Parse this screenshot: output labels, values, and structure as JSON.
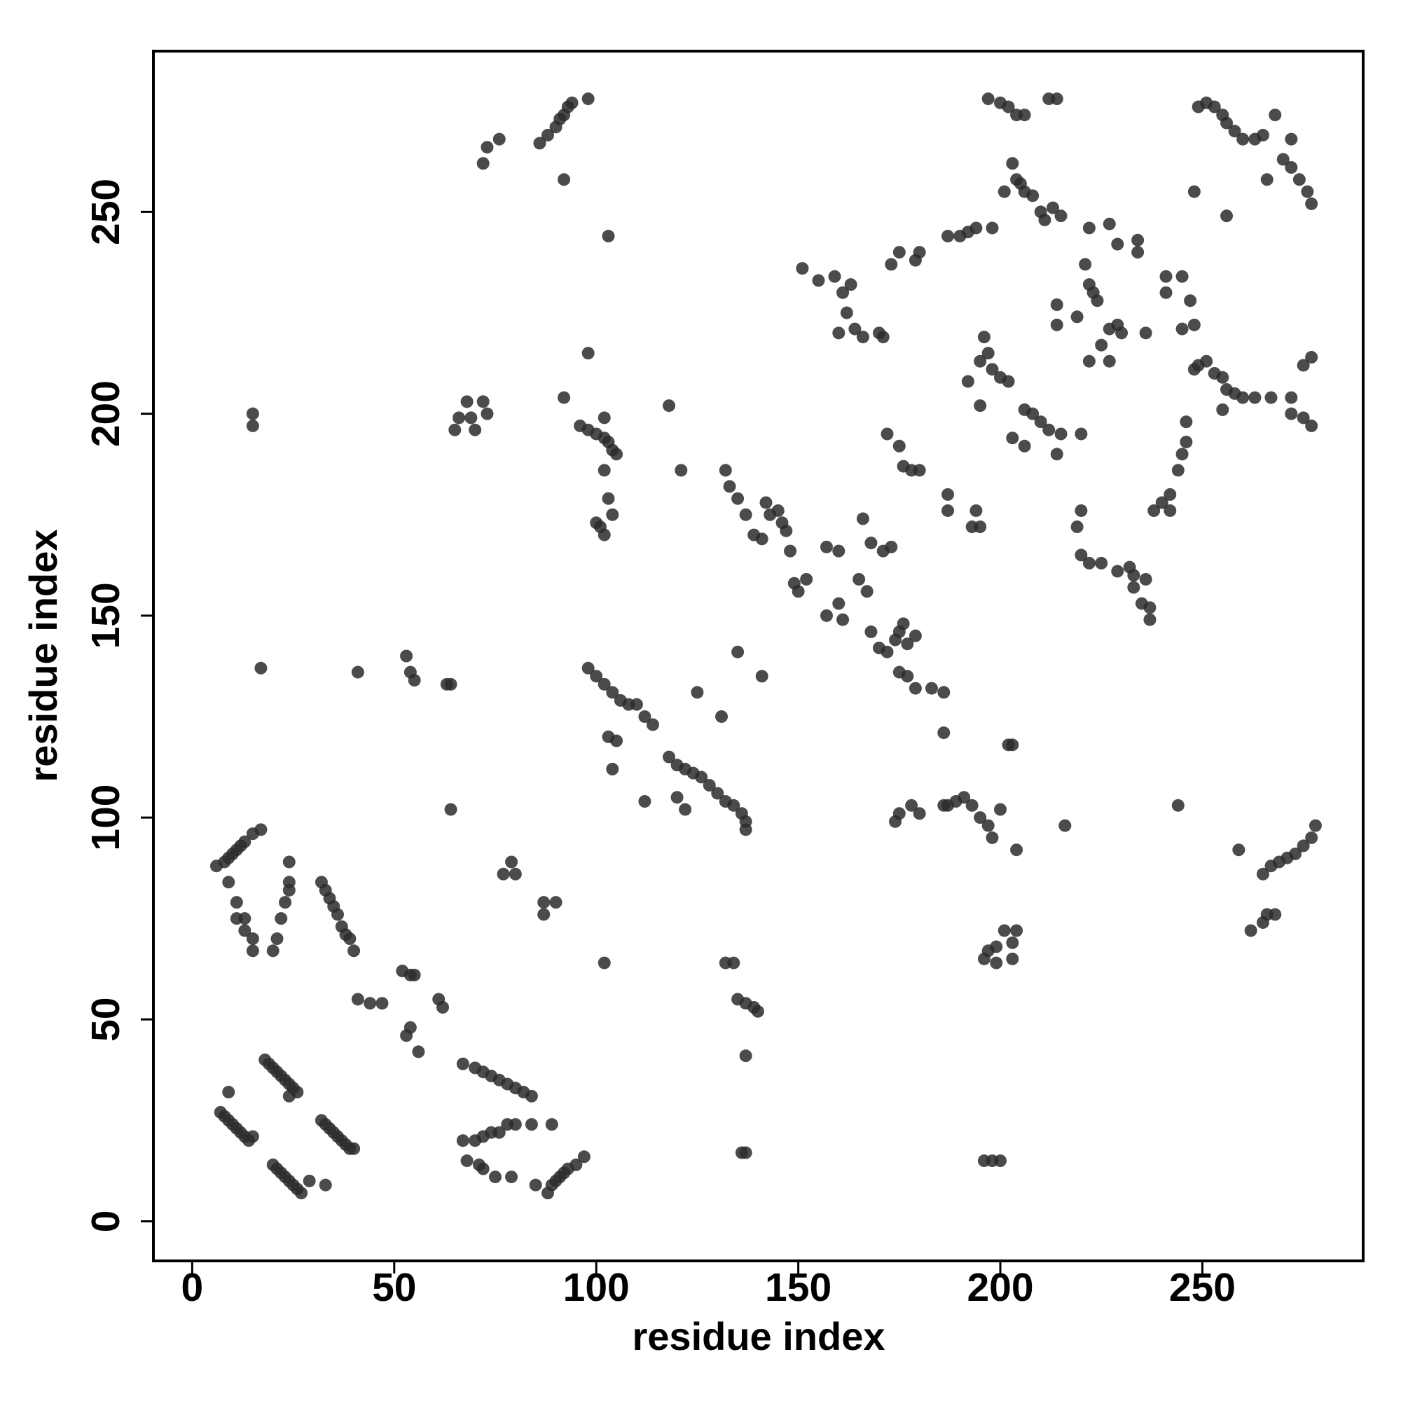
{
  "chart_data": {
    "type": "scatter",
    "xlabel": "residue index",
    "ylabel": "residue index",
    "color": "#2b2b2b",
    "xlim": [
      -9.6,
      289.8
    ],
    "ylim": [
      -9.8,
      289.8
    ],
    "xticks": [
      0,
      50,
      100,
      150,
      200,
      250
    ],
    "yticks": [
      0,
      50,
      100,
      150,
      200,
      250
    ],
    "x": [
      7,
      8,
      9,
      10,
      11,
      12,
      13,
      14,
      15,
      9,
      18,
      19,
      20,
      21,
      22,
      23,
      24,
      25,
      26,
      24,
      20,
      21,
      22,
      23,
      24,
      25,
      26,
      27,
      29,
      33,
      32,
      33,
      34,
      35,
      36,
      37,
      38,
      39,
      40,
      67,
      70,
      72,
      74,
      76,
      78,
      80,
      82,
      84,
      67,
      70,
      72,
      74,
      76,
      78,
      80,
      84,
      89,
      68,
      71,
      72,
      75,
      79,
      85,
      88,
      89,
      90,
      91,
      92,
      93,
      95,
      97,
      6,
      8,
      9,
      10,
      11,
      12,
      13,
      15,
      17,
      9,
      11,
      11,
      13,
      13,
      15,
      15,
      20,
      21,
      22,
      23,
      24,
      24,
      24,
      32,
      33,
      34,
      35,
      36,
      37,
      38,
      39,
      40,
      15,
      15,
      17,
      41,
      53,
      54,
      55,
      63,
      64,
      64,
      41,
      44,
      47,
      52,
      54,
      55,
      53,
      54,
      56,
      61,
      62,
      77,
      79,
      80,
      87,
      87,
      90,
      102,
      72,
      73,
      76,
      86,
      88,
      90,
      91,
      92,
      93,
      94,
      98,
      92,
      103,
      65,
      66,
      68,
      69,
      70,
      72,
      73,
      92,
      98,
      96,
      98,
      100,
      102,
      103,
      104,
      105,
      102,
      102,
      103,
      104,
      100,
      101,
      102,
      118,
      121,
      98,
      100,
      102,
      104,
      106,
      108,
      110,
      112,
      114,
      118,
      120,
      122,
      124,
      126,
      128,
      130,
      132,
      134,
      136,
      137,
      137,
      103,
      105,
      104,
      112,
      120,
      122,
      125,
      131,
      135,
      141,
      132,
      134,
      135,
      137,
      139,
      140,
      137,
      136,
      137,
      132,
      133,
      135,
      137,
      139,
      141,
      142,
      143,
      145,
      146,
      147,
      148,
      149,
      150,
      152,
      157,
      160,
      157,
      160,
      161,
      165,
      167,
      168,
      170,
      172,
      174,
      175,
      176,
      177,
      179,
      175,
      177,
      179,
      183,
      186,
      186,
      166,
      168,
      171,
      173,
      151,
      155,
      159,
      161,
      163,
      162,
      164,
      166,
      160,
      170,
      171,
      173,
      175,
      179,
      180,
      187,
      190,
      192,
      194,
      198,
      172,
      175,
      176,
      178,
      180,
      187,
      187,
      194,
      195,
      193,
      197,
      200,
      202,
      204,
      206,
      212,
      214,
      201,
      203,
      204,
      205,
      206,
      208,
      210,
      211,
      213,
      215,
      222,
      227,
      229,
      234,
      234,
      214,
      214,
      219,
      221,
      222,
      223,
      224,
      222,
      225,
      227,
      229,
      230,
      236,
      227,
      196,
      197,
      195,
      198,
      200,
      202,
      192,
      195,
      206,
      208,
      210,
      212,
      215,
      220,
      203,
      206,
      214,
      219,
      220,
      220,
      222,
      225,
      229,
      232,
      233,
      233,
      235,
      237,
      236,
      237,
      238,
      240,
      242,
      242,
      244,
      245,
      246,
      246,
      241,
      241,
      245,
      247,
      248,
      245,
      248,
      249,
      251,
      253,
      255,
      256,
      258,
      260,
      263,
      267,
      272,
      272,
      275,
      277,
      277,
      275,
      255,
      249,
      251,
      253,
      255,
      256,
      258,
      260,
      263,
      265,
      268,
      270,
      272,
      274,
      276,
      277,
      272,
      266,
      248,
      256,
      265,
      267,
      269,
      271,
      273,
      275,
      277,
      278,
      259,
      262,
      265,
      266,
      268,
      174,
      175,
      178,
      180,
      186,
      189,
      191,
      193,
      195,
      197,
      200,
      198,
      204,
      187,
      196,
      197,
      199,
      201,
      203,
      204,
      203,
      199,
      202,
      203,
      216,
      244,
      196,
      198,
      200
    ],
    "values": [
      27,
      26,
      25,
      24,
      23,
      22,
      21,
      20,
      21,
      32,
      40,
      39,
      38,
      37,
      36,
      35,
      34,
      33,
      32,
      31,
      14,
      13,
      12,
      11,
      10,
      9,
      8,
      7,
      10,
      9,
      25,
      24,
      23,
      22,
      21,
      20,
      19,
      18,
      18,
      39,
      38,
      37,
      36,
      35,
      34,
      33,
      32,
      31,
      20,
      20,
      21,
      22,
      22,
      24,
      24,
      24,
      24,
      15,
      14,
      13,
      11,
      11,
      9,
      7,
      9,
      10,
      11,
      12,
      13,
      14,
      16,
      88,
      89,
      90,
      91,
      92,
      93,
      94,
      96,
      97,
      84,
      79,
      75,
      75,
      72,
      70,
      67,
      67,
      70,
      75,
      79,
      82,
      84,
      89,
      84,
      82,
      80,
      78,
      76,
      73,
      71,
      70,
      67,
      200,
      197,
      137,
      136,
      140,
      136,
      134,
      133,
      133,
      102,
      55,
      54,
      54,
      62,
      61,
      61,
      46,
      48,
      42,
      55,
      53,
      86,
      89,
      86,
      79,
      76,
      79,
      64,
      262,
      266,
      268,
      267,
      269,
      271,
      273,
      274,
      276,
      277,
      278,
      258,
      244,
      196,
      199,
      203,
      199,
      196,
      203,
      200,
      204,
      215,
      197,
      196,
      195,
      194,
      193,
      191,
      190,
      199,
      186,
      179,
      175,
      173,
      172,
      170,
      202,
      186,
      137,
      135,
      133,
      131,
      129,
      128,
      128,
      125,
      123,
      115,
      113,
      112,
      111,
      110,
      108,
      106,
      104,
      103,
      101,
      99,
      97,
      120,
      119,
      112,
      104,
      105,
      102,
      131,
      125,
      141,
      135,
      64,
      64,
      55,
      54,
      53,
      52,
      41,
      17,
      17,
      186,
      182,
      179,
      175,
      170,
      169,
      178,
      175,
      176,
      173,
      171,
      166,
      158,
      156,
      159,
      167,
      166,
      150,
      153,
      149,
      159,
      156,
      146,
      142,
      141,
      144,
      146,
      148,
      143,
      145,
      136,
      135,
      132,
      132,
      131,
      121,
      174,
      168,
      166,
      167,
      236,
      233,
      234,
      230,
      232,
      225,
      221,
      219,
      220,
      220,
      219,
      237,
      240,
      238,
      240,
      244,
      244,
      245,
      246,
      246,
      195,
      192,
      187,
      186,
      186,
      180,
      176,
      176,
      172,
      172,
      278,
      277,
      276,
      274,
      274,
      278,
      278,
      255,
      262,
      258,
      257,
      255,
      254,
      250,
      248,
      251,
      249,
      246,
      247,
      242,
      243,
      240,
      227,
      222,
      224,
      237,
      232,
      230,
      228,
      213,
      217,
      221,
      222,
      220,
      220,
      213,
      219,
      215,
      213,
      211,
      209,
      208,
      208,
      202,
      201,
      200,
      198,
      196,
      195,
      195,
      194,
      192,
      190,
      172,
      176,
      165,
      163,
      163,
      161,
      162,
      160,
      157,
      153,
      152,
      159,
      149,
      176,
      178,
      180,
      176,
      186,
      190,
      193,
      198,
      230,
      234,
      234,
      228,
      222,
      221,
      211,
      212,
      213,
      210,
      209,
      206,
      205,
      204,
      204,
      204,
      204,
      200,
      199,
      197,
      214,
      212,
      201,
      276,
      277,
      276,
      274,
      272,
      270,
      268,
      268,
      269,
      274,
      263,
      261,
      258,
      255,
      252,
      268,
      258,
      255,
      249,
      86,
      88,
      89,
      90,
      91,
      93,
      95,
      98,
      92,
      72,
      74,
      76,
      76,
      99,
      101,
      103,
      101,
      103,
      104,
      105,
      103,
      100,
      98,
      102,
      95,
      92,
      103,
      65,
      67,
      68,
      72,
      69,
      72,
      65,
      64,
      118,
      118,
      98,
      103,
      15,
      15,
      15
    ]
  }
}
